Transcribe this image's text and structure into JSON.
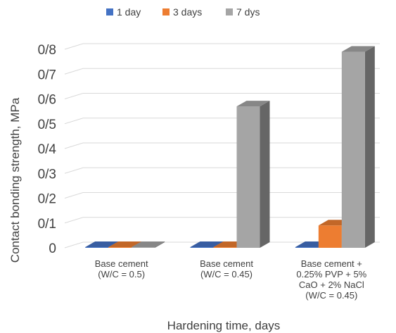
{
  "chart_data": {
    "type": "bar",
    "title": "",
    "xlabel": "Hardening time, days",
    "ylabel": "Contact bonding strength, MPa",
    "ylim": [
      0,
      0.8
    ],
    "yticks": [
      "0",
      "0/1",
      "0/2",
      "0/3",
      "0/4",
      "0/5",
      "0/6",
      "0/7",
      "0/8"
    ],
    "grid": true,
    "legend_position": "top",
    "categories": [
      [
        "Base cement",
        "(W/C = 0.5)"
      ],
      [
        "Base cement",
        "(W/C = 0.45)"
      ],
      [
        "Base cement +",
        "0.25% PVP + 5%",
        "CaO + 2% NaCl",
        "(W/C = 0.45)"
      ]
    ],
    "series": [
      {
        "name": "1 day",
        "color": "#4472c4",
        "values": [
          0.0,
          0.0,
          0.0
        ]
      },
      {
        "name": "3 days",
        "color": "#ed7d31",
        "values": [
          0.0,
          0.0,
          0.09
        ]
      },
      {
        "name": "7 dys",
        "color": "#a5a5a5",
        "values": [
          0.0,
          0.57,
          0.79
        ]
      }
    ]
  }
}
